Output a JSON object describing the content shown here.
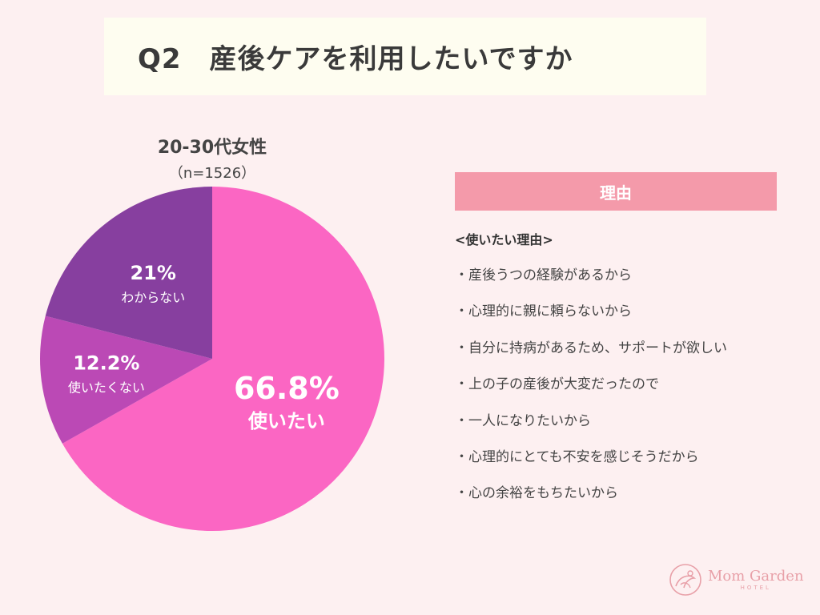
{
  "title": "Q2　産後ケアを利用したいですか",
  "subtitle": {
    "group": "20-30代女性",
    "sample": "（n=1526）"
  },
  "chart_data": {
    "type": "pie",
    "title": "Q2　産後ケアを利用したいですか",
    "categories": [
      "使いたい",
      "使いたくない",
      "わからない"
    ],
    "values": [
      66.8,
      12.2,
      21
    ],
    "labels": [
      "66.8%",
      "12.2%",
      "21%"
    ],
    "colors": [
      "#fb66c3",
      "#bb49b5",
      "#873f9f"
    ],
    "start": "12 o'clock, clockwise"
  },
  "reasons": {
    "header": "理由",
    "subheading": "<使いたい理由>",
    "items": [
      "・産後うつの経験があるから",
      "・心理的に親に頼らないから",
      "・自分に持病があるため、サポートが欲しい",
      "・上の子の産後が大変だったので",
      "・一人になりたいから",
      "・心理的にとても不安を感じそうだから",
      "・心の余裕をもちたいから"
    ]
  },
  "logo": {
    "name": "Mom Garden",
    "sub": "HOTEL"
  }
}
